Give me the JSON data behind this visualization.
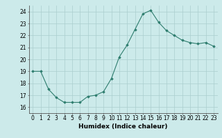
{
  "x": [
    0,
    1,
    2,
    3,
    4,
    5,
    6,
    7,
    8,
    9,
    10,
    11,
    12,
    13,
    14,
    15,
    16,
    17,
    18,
    19,
    20,
    21,
    22,
    23
  ],
  "y": [
    19,
    19,
    17.5,
    16.8,
    16.4,
    16.4,
    16.4,
    16.9,
    17.0,
    17.3,
    18.4,
    20.2,
    21.2,
    22.5,
    23.8,
    24.1,
    23.1,
    22.4,
    22.0,
    21.6,
    21.4,
    21.3,
    21.4,
    21.1
  ],
  "xlabel": "Humidex (Indice chaleur)",
  "xlim": [
    -0.5,
    23.5
  ],
  "ylim": [
    15.5,
    24.5
  ],
  "yticks": [
    16,
    17,
    18,
    19,
    20,
    21,
    22,
    23,
    24
  ],
  "xticks": [
    0,
    1,
    2,
    3,
    4,
    5,
    6,
    7,
    8,
    9,
    10,
    11,
    12,
    13,
    14,
    15,
    16,
    17,
    18,
    19,
    20,
    21,
    22,
    23
  ],
  "line_color": "#2e7d6e",
  "marker": "D",
  "marker_size": 1.8,
  "bg_color": "#cceaea",
  "grid_color": "#aacece",
  "label_fontsize": 6.5,
  "tick_fontsize": 5.5
}
